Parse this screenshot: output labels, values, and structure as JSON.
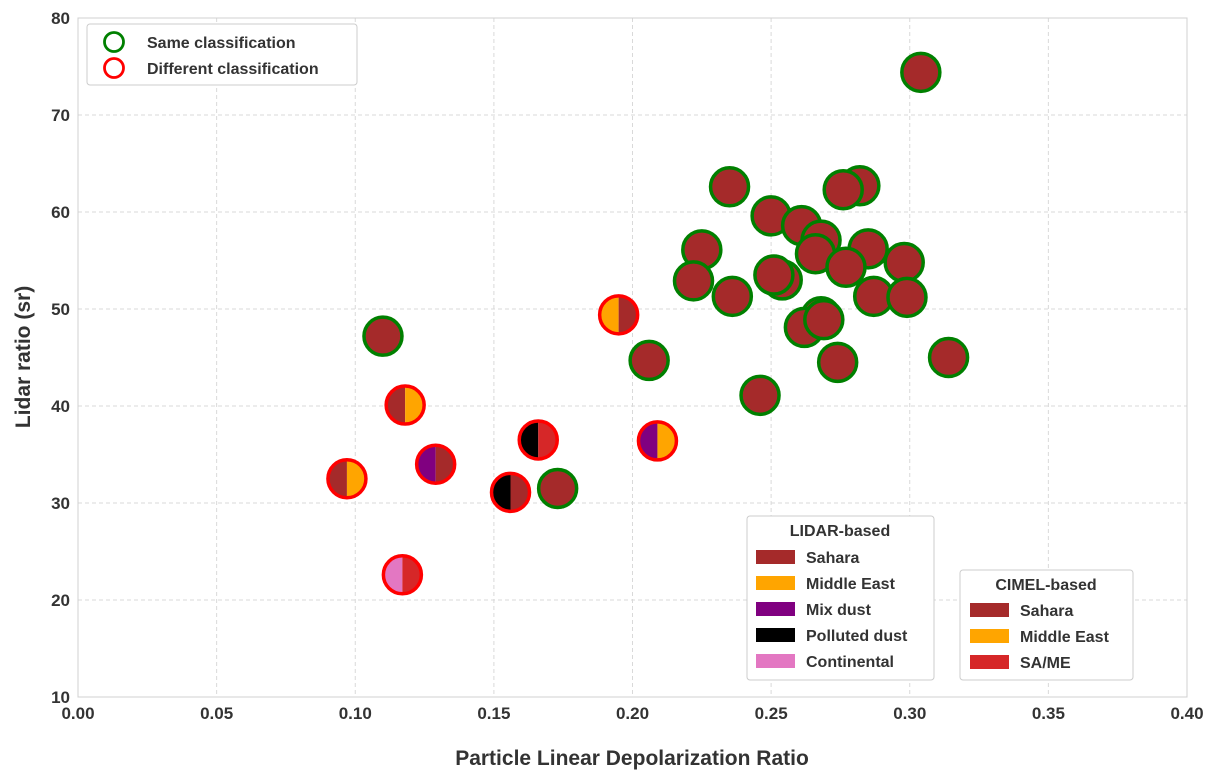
{
  "chart_data": {
    "type": "scatter",
    "xlabel": "Particle Linear Depolarization Ratio",
    "ylabel": "Lidar ratio (sr)",
    "xlim": [
      0.0,
      0.4
    ],
    "ylim": [
      10,
      80
    ],
    "x_ticks": [
      "0.00",
      "0.05",
      "0.10",
      "0.15",
      "0.20",
      "0.25",
      "0.30",
      "0.35",
      "0.40"
    ],
    "y_ticks": [
      "10",
      "20",
      "30",
      "40",
      "50",
      "60",
      "70",
      "80"
    ],
    "grid": true,
    "colors": {
      "same": "#008000",
      "different": "#ff0000",
      "Sahara": "#a52a2a",
      "Middle East": "#ffa500",
      "Mix dust": "#800080",
      "Polluted dust": "#000000",
      "Continental": "#e377c2",
      "SA/ME": "#d62728"
    },
    "outline_legend": {
      "position": "top-left",
      "entries": [
        {
          "label": "Same classification",
          "key": "same"
        },
        {
          "label": "Different classification",
          "key": "different"
        }
      ]
    },
    "lidar_legend": {
      "title": "LIDAR-based",
      "position": "bottom-center",
      "entries": [
        "Sahara",
        "Middle East",
        "Mix dust",
        "Polluted dust",
        "Continental"
      ]
    },
    "cimel_legend": {
      "title": "CIMEL-based",
      "position": "bottom-right",
      "entries": [
        "Sahara",
        "Middle East",
        "SA/ME"
      ]
    },
    "points": [
      {
        "x": 0.304,
        "y": 74.4,
        "lidar": "Sahara",
        "cimel": "Sahara",
        "match": "same"
      },
      {
        "x": 0.235,
        "y": 62.6,
        "lidar": "Sahara",
        "cimel": "Sahara",
        "match": "same"
      },
      {
        "x": 0.282,
        "y": 62.7,
        "lidar": "Sahara",
        "cimel": "Sahara",
        "match": "same"
      },
      {
        "x": 0.276,
        "y": 62.3,
        "lidar": "Sahara",
        "cimel": "Sahara",
        "match": "same"
      },
      {
        "x": 0.25,
        "y": 59.6,
        "lidar": "Sahara",
        "cimel": "Sahara",
        "match": "same"
      },
      {
        "x": 0.261,
        "y": 58.6,
        "lidar": "Sahara",
        "cimel": "Sahara",
        "match": "same"
      },
      {
        "x": 0.268,
        "y": 57.1,
        "lidar": "Sahara",
        "cimel": "Sahara",
        "match": "same"
      },
      {
        "x": 0.225,
        "y": 56.1,
        "lidar": "Sahara",
        "cimel": "Sahara",
        "match": "same"
      },
      {
        "x": 0.285,
        "y": 56.2,
        "lidar": "Sahara",
        "cimel": "Sahara",
        "match": "same"
      },
      {
        "x": 0.266,
        "y": 55.7,
        "lidar": "Sahara",
        "cimel": "Sahara",
        "match": "same"
      },
      {
        "x": 0.298,
        "y": 54.8,
        "lidar": "Sahara",
        "cimel": "Sahara",
        "match": "same"
      },
      {
        "x": 0.277,
        "y": 54.3,
        "lidar": "Sahara",
        "cimel": "Sahara",
        "match": "same"
      },
      {
        "x": 0.222,
        "y": 52.9,
        "lidar": "Sahara",
        "cimel": "Sahara",
        "match": "same"
      },
      {
        "x": 0.254,
        "y": 53.0,
        "lidar": "Sahara",
        "cimel": "Sahara",
        "match": "same"
      },
      {
        "x": 0.251,
        "y": 53.5,
        "lidar": "Sahara",
        "cimel": "Sahara",
        "match": "same"
      },
      {
        "x": 0.236,
        "y": 51.3,
        "lidar": "Sahara",
        "cimel": "Sahara",
        "match": "same"
      },
      {
        "x": 0.287,
        "y": 51.3,
        "lidar": "Sahara",
        "cimel": "Sahara",
        "match": "same"
      },
      {
        "x": 0.299,
        "y": 51.2,
        "lidar": "Sahara",
        "cimel": "Sahara",
        "match": "same"
      },
      {
        "x": 0.268,
        "y": 49.2,
        "lidar": "Sahara",
        "cimel": "Sahara",
        "match": "same"
      },
      {
        "x": 0.262,
        "y": 48.1,
        "lidar": "Sahara",
        "cimel": "Sahara",
        "match": "same"
      },
      {
        "x": 0.269,
        "y": 48.9,
        "lidar": "Sahara",
        "cimel": "Sahara",
        "match": "same"
      },
      {
        "x": 0.11,
        "y": 47.2,
        "lidar": "Sahara",
        "cimel": "Sahara",
        "match": "same"
      },
      {
        "x": 0.206,
        "y": 44.7,
        "lidar": "Sahara",
        "cimel": "Sahara",
        "match": "same"
      },
      {
        "x": 0.274,
        "y": 44.5,
        "lidar": "Sahara",
        "cimel": "Sahara",
        "match": "same"
      },
      {
        "x": 0.314,
        "y": 45.0,
        "lidar": "Sahara",
        "cimel": "Sahara",
        "match": "same"
      },
      {
        "x": 0.246,
        "y": 41.1,
        "lidar": "Sahara",
        "cimel": "Sahara",
        "match": "same"
      },
      {
        "x": 0.173,
        "y": 31.5,
        "lidar": "Sahara",
        "cimel": "Sahara",
        "match": "same"
      },
      {
        "x": 0.195,
        "y": 49.4,
        "lidar": "Middle East",
        "cimel": "Sahara",
        "match": "different"
      },
      {
        "x": 0.118,
        "y": 40.1,
        "lidar": "Sahara",
        "cimel": "Middle East",
        "match": "different"
      },
      {
        "x": 0.166,
        "y": 36.5,
        "lidar": "Polluted dust",
        "cimel": "SA/ME",
        "match": "different"
      },
      {
        "x": 0.209,
        "y": 36.4,
        "lidar": "Mix dust",
        "cimel": "Middle East",
        "match": "different"
      },
      {
        "x": 0.129,
        "y": 34.0,
        "lidar": "Mix dust",
        "cimel": "Sahara",
        "match": "different"
      },
      {
        "x": 0.097,
        "y": 32.5,
        "lidar": "Sahara",
        "cimel": "Middle East",
        "match": "different"
      },
      {
        "x": 0.156,
        "y": 31.1,
        "lidar": "Polluted dust",
        "cimel": "Sahara",
        "match": "different"
      },
      {
        "x": 0.117,
        "y": 22.6,
        "lidar": "Continental",
        "cimel": "SA/ME",
        "match": "different"
      }
    ]
  }
}
